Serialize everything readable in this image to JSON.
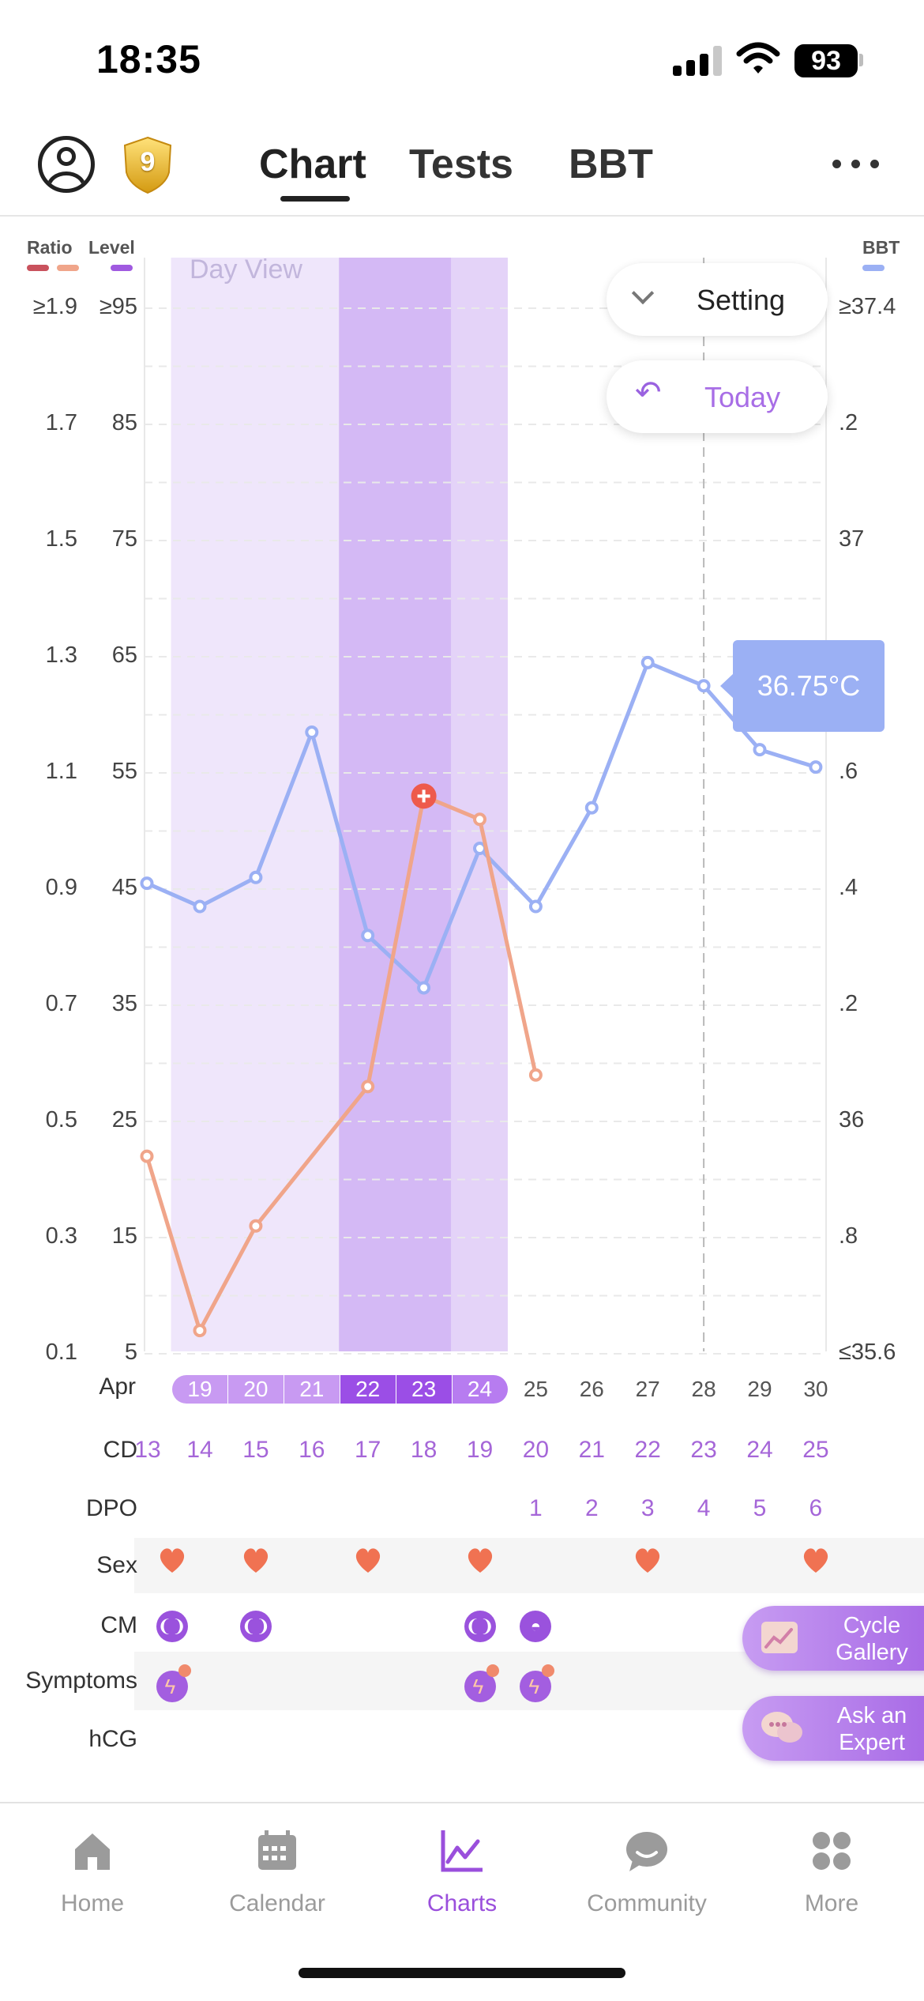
{
  "status_bar": {
    "time": "18:35",
    "battery": "93"
  },
  "header": {
    "badge_level": "9",
    "tabs": [
      {
        "label": "Chart",
        "active": true
      },
      {
        "label": "Tests",
        "active": false
      },
      {
        "label": "BBT",
        "active": false
      }
    ]
  },
  "axes": {
    "left1_title": "Ratio",
    "left2_title": "Level",
    "right_title": "BBT",
    "ratio_ticks": [
      "≥1.9",
      "1.7",
      "1.5",
      "1.3",
      "1.1",
      "0.9",
      "0.7",
      "0.5",
      "0.3",
      "0.1"
    ],
    "level_ticks": [
      "≥95",
      "85",
      "75",
      "65",
      "55",
      "45",
      "35",
      "25",
      "15",
      "5"
    ],
    "bbt_ticks": [
      "≥37.4",
      ".2",
      "37",
      ".8",
      ".6",
      ".4",
      ".2",
      "36",
      ".8",
      "≤35.6"
    ],
    "colors": {
      "ratio": "#c9525d",
      "level": "#f0a58a",
      "bbt": "#9bb0f4",
      "level_swatch": "#a05ae0"
    }
  },
  "chart_overlay": {
    "view_label": "Day View",
    "setting_label": "Setting",
    "today_label": "Today",
    "bbt_tooltip": "36.75°C"
  },
  "chart_data": {
    "type": "line",
    "x": [
      "Apr 19",
      "Apr 20",
      "Apr 21",
      "Apr 22",
      "Apr 23",
      "Apr 24",
      "Apr 25",
      "Apr 26",
      "Apr 27",
      "Apr 28",
      "Apr 29",
      "Apr 30"
    ],
    "bbt_axis": [
      35.6,
      37.4
    ],
    "level_axis": [
      5,
      95
    ],
    "series": [
      {
        "axis": "bbt",
        "color": "#9bb0f4",
        "points": [
          {
            "i": -0.5,
            "v": 36.41
          },
          {
            "i": 0,
            "v": 36.37
          },
          {
            "i": 1,
            "v": 36.42
          },
          {
            "i": 2,
            "v": 36.67
          },
          {
            "i": 3,
            "v": 36.32
          },
          {
            "i": 4,
            "v": 36.23
          },
          {
            "i": 5,
            "v": 36.47
          },
          {
            "i": 6,
            "v": 36.37
          },
          {
            "i": 7,
            "v": 36.54
          },
          {
            "i": 8,
            "v": 36.79
          },
          {
            "i": 9,
            "v": 36.75
          },
          {
            "i": 10,
            "v": 36.64
          },
          {
            "i": 11,
            "v": 36.61
          }
        ]
      },
      {
        "axis": "level",
        "color": "#f0a58a",
        "points": [
          {
            "i": -0.5,
            "v": 22
          },
          {
            "i": 0,
            "v": 7
          },
          {
            "i": 1,
            "v": 16
          },
          {
            "i": 3,
            "v": 28
          },
          {
            "i": 4,
            "v": 53
          },
          {
            "i": 5,
            "v": 51
          },
          {
            "i": 6,
            "v": 29
          }
        ],
        "peak_index": 4
      }
    ],
    "bands": [
      {
        "from": -0.5,
        "to": 2.5,
        "shade": "light"
      },
      {
        "from": 2.5,
        "to": 4.5,
        "shade": "dark"
      },
      {
        "from": 4.5,
        "to": 5.5,
        "shade": "medium"
      }
    ],
    "today_index": 9
  },
  "rows": {
    "month_label": "Apr",
    "dates": [
      "19",
      "20",
      "21",
      "22",
      "23",
      "24",
      "25",
      "26",
      "27",
      "28",
      "29",
      "30"
    ],
    "cd_label": "CD",
    "cd_first": "13",
    "cd": [
      "14",
      "15",
      "16",
      "17",
      "18",
      "19",
      "20",
      "21",
      "22",
      "23",
      "24",
      "25"
    ],
    "dpo_label": "DPO",
    "dpo": [
      "",
      "",
      "",
      "",
      "",
      "",
      "1",
      "2",
      "3",
      "4",
      "5",
      "6"
    ],
    "sex_label": "Sex",
    "cm_label": "CM",
    "symptoms_label": "Symptoms",
    "hcg_label": "hCG"
  },
  "floating": {
    "cycle_gallery": "Cycle Gallery",
    "ask_expert": "Ask an Expert"
  },
  "nav": [
    {
      "label": "Home",
      "active": false
    },
    {
      "label": "Calendar",
      "active": false
    },
    {
      "label": "Charts",
      "active": true
    },
    {
      "label": "Community",
      "active": false
    },
    {
      "label": "More",
      "active": false
    }
  ]
}
